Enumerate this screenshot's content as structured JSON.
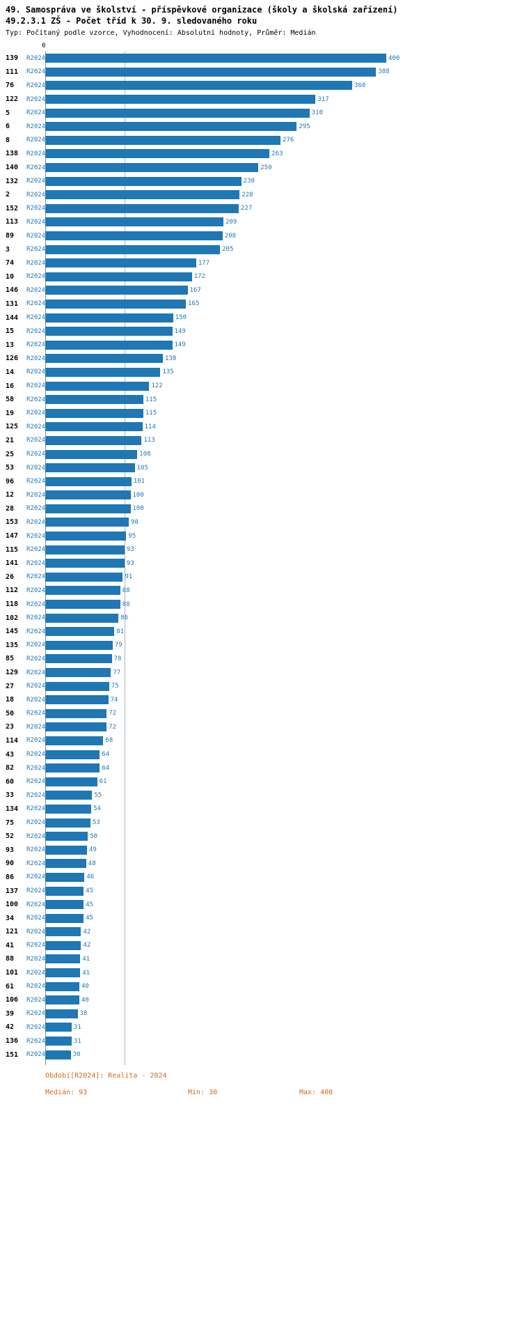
{
  "header": {
    "title_line1": "49. Samospráva ve školství - příspěvkové organizace (školy a školská zařízení)",
    "title_line2": "49.2.3.1 ZŠ - Počet tříd k 30. 9. sledovaného roku",
    "meta": "Typ: Počítaný podle vzorce, Vyhodnocení: Absolutní hodnoty, Průměr: Medián"
  },
  "chart_data": {
    "type": "bar",
    "orientation": "horizontal",
    "title": "49.2.3.1 ZŠ - Počet tříd k 30. 9. sledovaného roku",
    "period_label": "R2024",
    "axis_zero_label": "0",
    "xlim": [
      0,
      400
    ],
    "median_line_value": 93,
    "bar_color": "#1f77b4",
    "grid": false,
    "rows": [
      {
        "id": "139",
        "value": 400
      },
      {
        "id": "111",
        "value": 388
      },
      {
        "id": "76",
        "value": 360
      },
      {
        "id": "122",
        "value": 317
      },
      {
        "id": "5",
        "value": 310
      },
      {
        "id": "6",
        "value": 295
      },
      {
        "id": "8",
        "value": 276
      },
      {
        "id": "138",
        "value": 263
      },
      {
        "id": "140",
        "value": 250
      },
      {
        "id": "132",
        "value": 230
      },
      {
        "id": "2",
        "value": 228
      },
      {
        "id": "152",
        "value": 227
      },
      {
        "id": "113",
        "value": 209
      },
      {
        "id": "89",
        "value": 208
      },
      {
        "id": "3",
        "value": 205
      },
      {
        "id": "74",
        "value": 177
      },
      {
        "id": "10",
        "value": 172
      },
      {
        "id": "146",
        "value": 167
      },
      {
        "id": "131",
        "value": 165
      },
      {
        "id": "144",
        "value": 150
      },
      {
        "id": "15",
        "value": 149
      },
      {
        "id": "13",
        "value": 149
      },
      {
        "id": "126",
        "value": 138
      },
      {
        "id": "14",
        "value": 135
      },
      {
        "id": "16",
        "value": 122
      },
      {
        "id": "58",
        "value": 115
      },
      {
        "id": "19",
        "value": 115
      },
      {
        "id": "125",
        "value": 114
      },
      {
        "id": "21",
        "value": 113
      },
      {
        "id": "25",
        "value": 108
      },
      {
        "id": "53",
        "value": 105
      },
      {
        "id": "96",
        "value": 101
      },
      {
        "id": "12",
        "value": 100
      },
      {
        "id": "28",
        "value": 100
      },
      {
        "id": "153",
        "value": 98
      },
      {
        "id": "147",
        "value": 95
      },
      {
        "id": "115",
        "value": 93
      },
      {
        "id": "141",
        "value": 93
      },
      {
        "id": "26",
        "value": 91
      },
      {
        "id": "112",
        "value": 88
      },
      {
        "id": "118",
        "value": 88
      },
      {
        "id": "102",
        "value": 86
      },
      {
        "id": "145",
        "value": 81
      },
      {
        "id": "135",
        "value": 79
      },
      {
        "id": "85",
        "value": 78
      },
      {
        "id": "129",
        "value": 77
      },
      {
        "id": "27",
        "value": 75
      },
      {
        "id": "18",
        "value": 74
      },
      {
        "id": "50",
        "value": 72
      },
      {
        "id": "23",
        "value": 72
      },
      {
        "id": "114",
        "value": 68
      },
      {
        "id": "43",
        "value": 64
      },
      {
        "id": "82",
        "value": 64
      },
      {
        "id": "60",
        "value": 61
      },
      {
        "id": "33",
        "value": 55
      },
      {
        "id": "134",
        "value": 54
      },
      {
        "id": "75",
        "value": 53
      },
      {
        "id": "52",
        "value": 50
      },
      {
        "id": "93",
        "value": 49
      },
      {
        "id": "90",
        "value": 48
      },
      {
        "id": "86",
        "value": 46
      },
      {
        "id": "137",
        "value": 45
      },
      {
        "id": "100",
        "value": 45
      },
      {
        "id": "34",
        "value": 45
      },
      {
        "id": "121",
        "value": 42
      },
      {
        "id": "41",
        "value": 42
      },
      {
        "id": "88",
        "value": 41
      },
      {
        "id": "101",
        "value": 41
      },
      {
        "id": "61",
        "value": 40
      },
      {
        "id": "106",
        "value": 40
      },
      {
        "id": "39",
        "value": 38
      },
      {
        "id": "42",
        "value": 31
      },
      {
        "id": "136",
        "value": 31
      },
      {
        "id": "151",
        "value": 30
      }
    ]
  },
  "footer": {
    "period": "Období[R2024]: Realita - 2024",
    "median": "Medián: 93",
    "min": "Min: 30",
    "max": "Max: 400"
  }
}
